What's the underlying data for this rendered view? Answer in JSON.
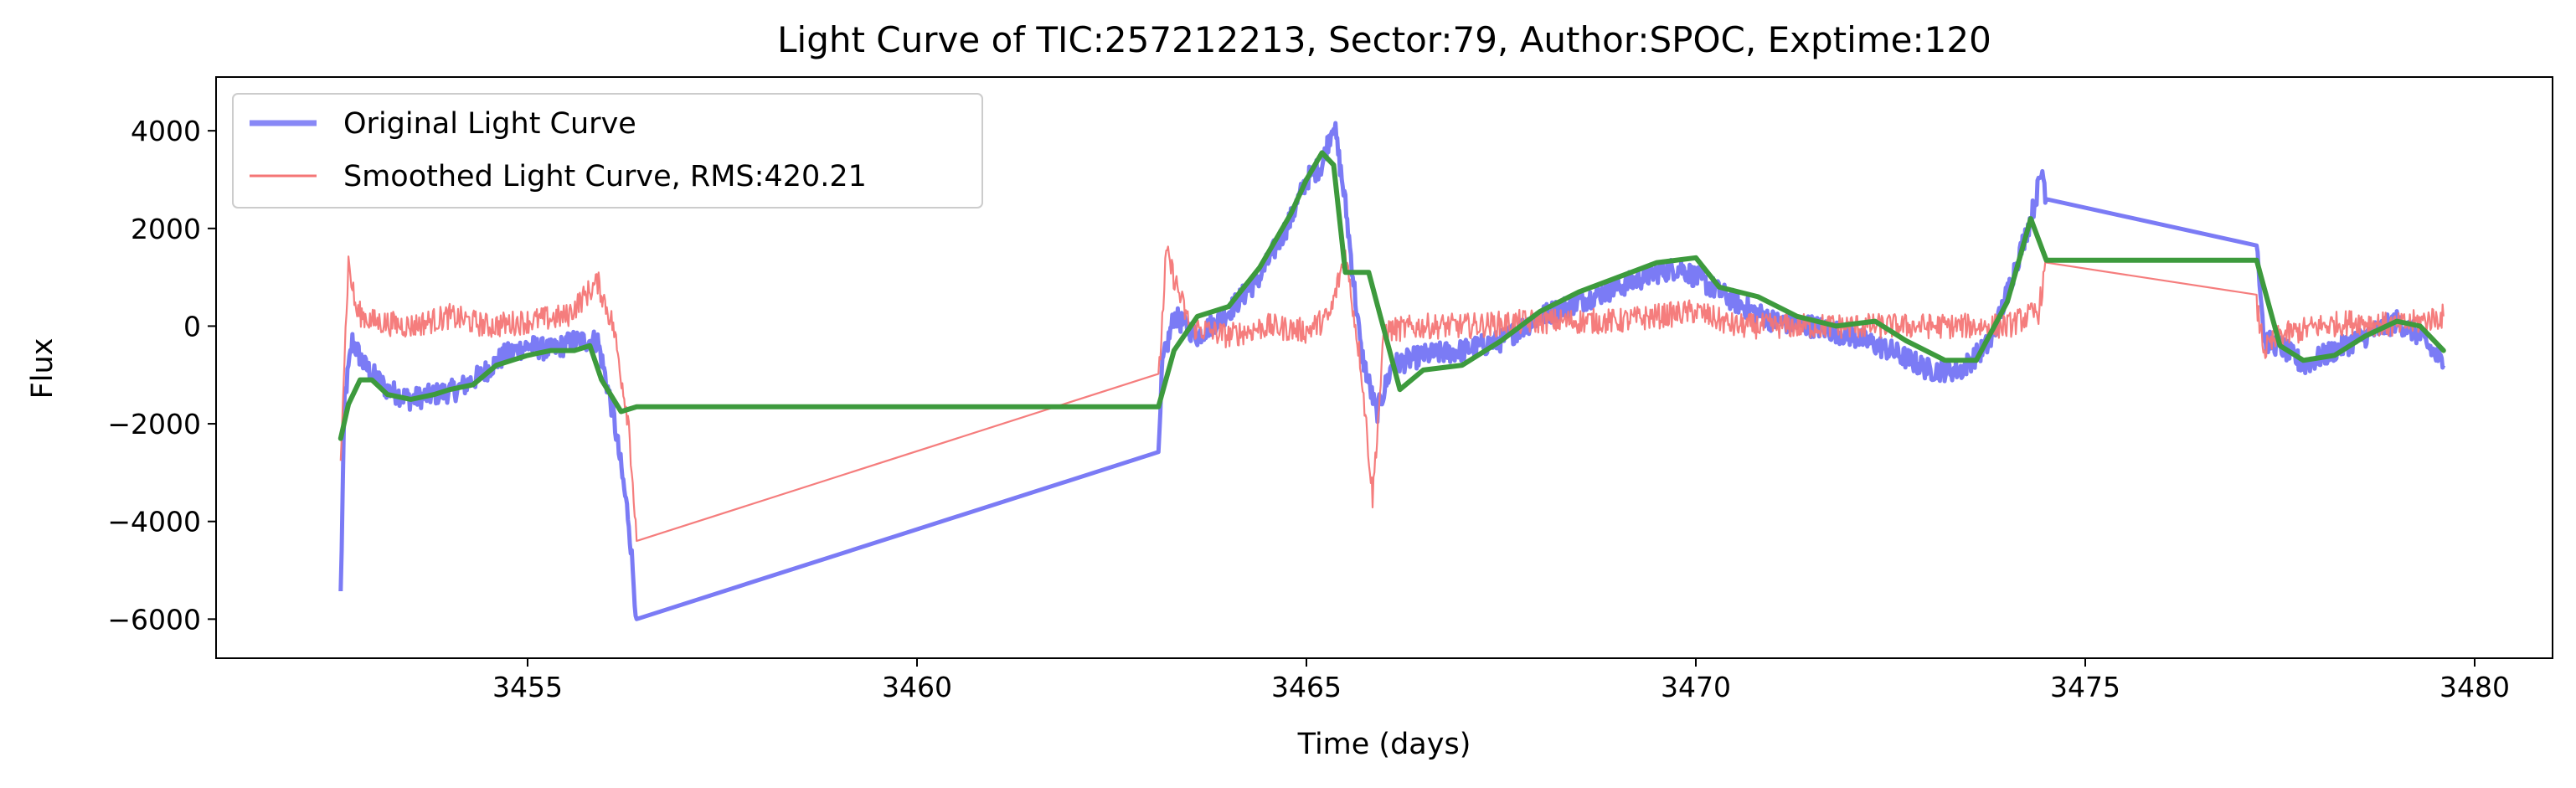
{
  "chart_data": {
    "type": "line",
    "title": "Light Curve of TIC:257212213, Sector:79, Author:SPOC, Exptime:120",
    "xlabel": "Time (days)",
    "ylabel": "Flux",
    "xlim": [
      3451.0,
      3481.0
    ],
    "ylim": [
      -6800,
      5100
    ],
    "xticks": [
      3455,
      3460,
      3465,
      3470,
      3475,
      3480
    ],
    "yticks": [
      -6000,
      -4000,
      -2000,
      0,
      2000,
      4000
    ],
    "xtick_labels": [
      "3455",
      "3460",
      "3465",
      "3470",
      "3475",
      "3480"
    ],
    "ytick_labels": [
      "−6000",
      "−4000",
      "−2000",
      "0",
      "2000",
      "4000"
    ],
    "grid": false,
    "legend_position": "top-left",
    "series": [
      {
        "name": "Original Light Curve",
        "color": "#7b7bf5",
        "style": "noisy-thick",
        "x": [
          3452.6,
          3452.65,
          3452.75,
          3452.9,
          3453.2,
          3453.5,
          3453.8,
          3454.1,
          3454.4,
          3454.7,
          3455.0,
          3455.3,
          3455.6,
          3455.9,
          3456.1,
          3456.3,
          3456.4,
          3463.1,
          3463.15,
          3463.3,
          3463.6,
          3464.0,
          3464.4,
          3464.8,
          3465.0,
          3465.2,
          3465.35,
          3465.5,
          3465.7,
          3465.9,
          3466.1,
          3466.5,
          3467.0,
          3467.5,
          3468.0,
          3468.5,
          3469.0,
          3469.5,
          3469.8,
          3470.1,
          3470.5,
          3471.0,
          3471.5,
          3472.0,
          3472.5,
          3473.0,
          3473.4,
          3473.8,
          3474.1,
          3474.3,
          3474.45,
          3474.5,
          3477.2,
          3477.3,
          3477.5,
          3477.8,
          3478.2,
          3478.6,
          3479.0,
          3479.3,
          3479.6
        ],
        "y": [
          -5500,
          -1500,
          -300,
          -800,
          -1300,
          -1500,
          -1400,
          -1300,
          -1000,
          -600,
          -400,
          -500,
          -300,
          -300,
          -1800,
          -4000,
          -6000,
          -2800,
          -800,
          200,
          -200,
          300,
          1000,
          2200,
          3000,
          3300,
          4200,
          2500,
          -500,
          -1800,
          -800,
          -600,
          -500,
          -300,
          200,
          500,
          800,
          1100,
          1200,
          900,
          500,
          100,
          0,
          -200,
          -500,
          -900,
          -900,
          -300,
          1200,
          2200,
          3200,
          2600,
          1800,
          -300,
          -400,
          -800,
          -500,
          -200,
          100,
          -200,
          -800
        ]
      },
      {
        "name": "Smoothed Light Curve, RMS:420.21",
        "color": "#f47676",
        "style": "noisy-thin",
        "x": [
          3452.6,
          3452.7,
          3452.8,
          3453.0,
          3453.5,
          3454.0,
          3454.5,
          3455.0,
          3455.5,
          3455.9,
          3456.1,
          3456.3,
          3456.4,
          3463.1,
          3463.2,
          3463.5,
          3464.0,
          3464.5,
          3465.0,
          3465.3,
          3465.5,
          3465.7,
          3465.85,
          3466.0,
          3466.5,
          3467.0,
          3468.0,
          3469.0,
          3469.5,
          3470.0,
          3470.5,
          3471.0,
          3472.0,
          3473.0,
          3474.0,
          3474.4,
          3474.5,
          3477.2,
          3477.3,
          3477.5,
          3478.0,
          3478.5,
          3479.0,
          3479.6
        ],
        "y": [
          -2500,
          1300,
          300,
          100,
          0,
          200,
          0,
          100,
          200,
          900,
          0,
          -2000,
          -4400,
          -1200,
          1500,
          0,
          -200,
          0,
          -100,
          200,
          1500,
          -800,
          -3500,
          -100,
          0,
          0,
          100,
          100,
          200,
          300,
          0,
          0,
          0,
          0,
          0,
          300,
          1300,
          400,
          -500,
          -200,
          0,
          100,
          0,
          200
        ]
      },
      {
        "name": "",
        "color": "#3d9a3d",
        "style": "smooth",
        "x": [
          3452.6,
          3452.7,
          3452.85,
          3453.0,
          3453.2,
          3453.5,
          3453.8,
          3454.0,
          3454.3,
          3454.6,
          3455.0,
          3455.3,
          3455.6,
          3455.8,
          3455.95,
          3456.2,
          3456.4,
          3463.1,
          3463.3,
          3463.6,
          3464.0,
          3464.4,
          3464.8,
          3465.0,
          3465.2,
          3465.35,
          3465.5,
          3465.8,
          3466.2,
          3466.5,
          3467.0,
          3467.5,
          3468.0,
          3468.5,
          3469.0,
          3469.5,
          3470.0,
          3470.3,
          3470.8,
          3471.3,
          3471.8,
          3472.3,
          3472.7,
          3473.2,
          3473.6,
          3474.0,
          3474.3,
          3474.5,
          3477.2,
          3477.5,
          3477.8,
          3478.2,
          3478.6,
          3479.0,
          3479.3,
          3479.6
        ],
        "y": [
          -2300,
          -1600,
          -1100,
          -1100,
          -1400,
          -1500,
          -1400,
          -1300,
          -1200,
          -800,
          -600,
          -500,
          -500,
          -400,
          -1100,
          -1750,
          -1650,
          -1650,
          -500,
          200,
          400,
          1200,
          2300,
          3000,
          3550,
          3300,
          1100,
          1100,
          -1300,
          -900,
          -800,
          -300,
          300,
          700,
          1000,
          1300,
          1400,
          800,
          600,
          200,
          0,
          100,
          -300,
          -700,
          -700,
          500,
          2200,
          1350,
          1350,
          -400,
          -700,
          -600,
          -200,
          100,
          0,
          -500
        ]
      }
    ]
  }
}
